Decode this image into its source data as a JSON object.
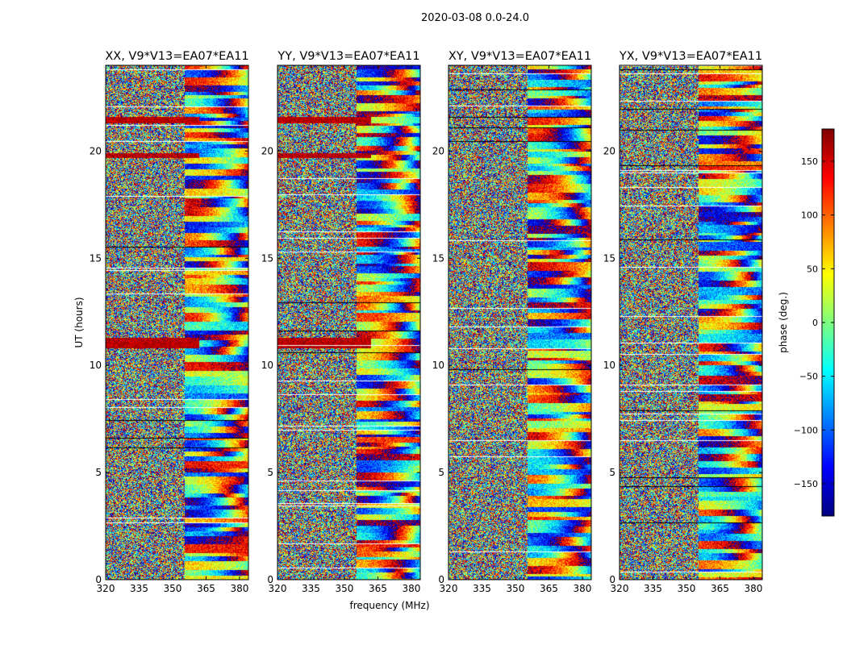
{
  "suptitle": "2020-03-08 0.0-24.0",
  "shared": {
    "ylabel": "UT (hours)",
    "xlabel": "frequency (MHz)",
    "xticks": [
      320,
      335,
      350,
      365,
      380
    ],
    "yticks": [
      0,
      5,
      10,
      15,
      20
    ],
    "xlim": [
      320,
      384
    ],
    "ylim": [
      0,
      24
    ]
  },
  "colorbar": {
    "label": "phase (deg.)",
    "ticks": [
      150,
      100,
      50,
      0,
      -50,
      -100,
      -150
    ],
    "range": [
      -180,
      180
    ],
    "stops": [
      "#00007f",
      "#0000ff",
      "#007fff",
      "#00ffff",
      "#7fff7f",
      "#ffff00",
      "#ff7f00",
      "#ff0000",
      "#7f0000"
    ]
  },
  "chart_data": [
    {
      "type": "heatmap",
      "title": "XX, V9*V13=EA07*EA11",
      "polarization": "XX",
      "xlabel": "",
      "ylabel": "UT (hours)",
      "seed": 11
    },
    {
      "type": "heatmap",
      "title": "YY, V9*V13=EA07*EA11",
      "polarization": "YY",
      "xlabel": "frequency (MHz)",
      "ylabel": "",
      "seed": 23
    },
    {
      "type": "heatmap",
      "title": "XY, V9*V13=EA07*EA11",
      "polarization": "XY",
      "xlabel": "",
      "ylabel": "",
      "seed": 37
    },
    {
      "type": "heatmap",
      "title": "YX, V9*V13=EA07*EA11",
      "polarization": "YX",
      "xlabel": "",
      "ylabel": "",
      "seed": 53
    }
  ]
}
